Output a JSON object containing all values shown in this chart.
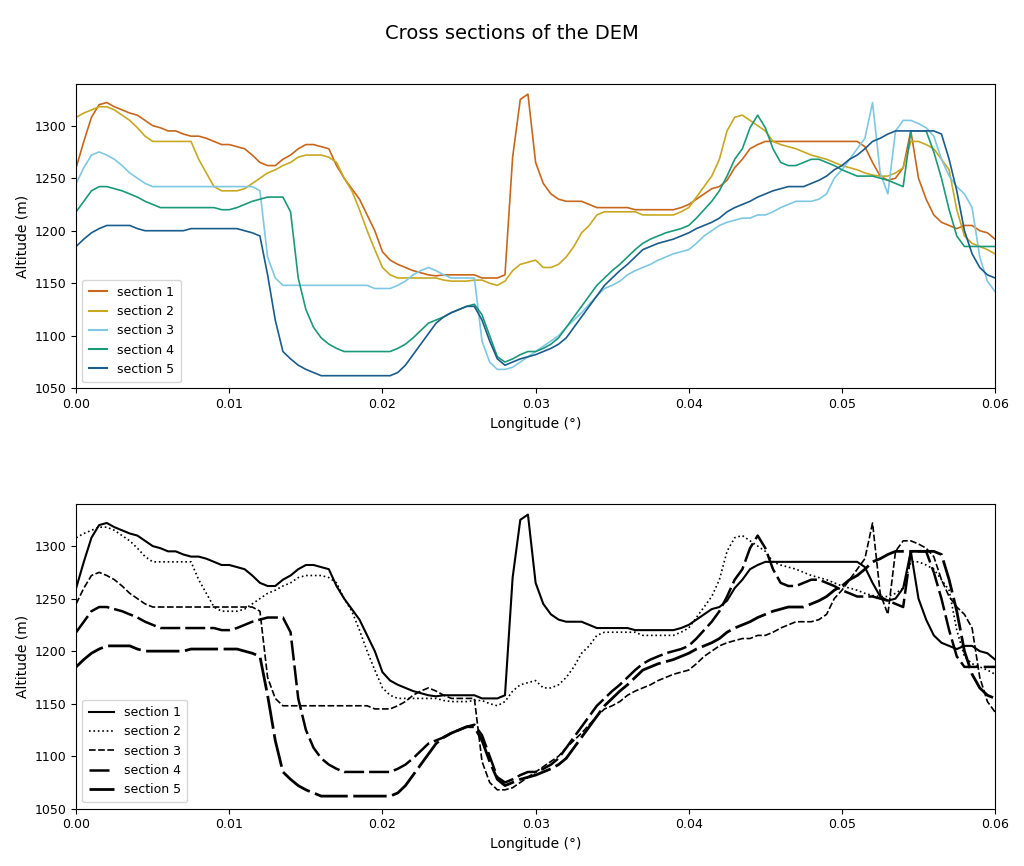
{
  "title": "Cross sections of the DEM",
  "xlabel": "Longitude (°)",
  "ylabel": "Altitude (m)",
  "xlim": [
    0.0,
    0.06
  ],
  "ylim": [
    1050,
    1340
  ],
  "yticks": [
    1050,
    1100,
    1150,
    1200,
    1250,
    1300
  ],
  "xticks": [
    0.0,
    0.01,
    0.02,
    0.03,
    0.04,
    0.05,
    0.06
  ],
  "colors": {
    "section1": "#c8671b",
    "section2": "#c8a820",
    "section3": "#7ec8e3",
    "section4": "#1a9a7a",
    "section5": "#1a5c8c"
  },
  "section1_x": [
    0.0,
    0.0005,
    0.001,
    0.0015,
    0.002,
    0.0025,
    0.003,
    0.0035,
    0.004,
    0.0045,
    0.005,
    0.0055,
    0.006,
    0.0065,
    0.007,
    0.0075,
    0.008,
    0.0085,
    0.009,
    0.0095,
    0.01,
    0.0105,
    0.011,
    0.0115,
    0.012,
    0.0125,
    0.013,
    0.0135,
    0.014,
    0.0145,
    0.015,
    0.0155,
    0.016,
    0.0165,
    0.017,
    0.0175,
    0.018,
    0.0185,
    0.019,
    0.0195,
    0.02,
    0.0205,
    0.021,
    0.0215,
    0.022,
    0.0225,
    0.023,
    0.0235,
    0.024,
    0.0245,
    0.025,
    0.0255,
    0.026,
    0.0265,
    0.027,
    0.0275,
    0.028,
    0.0285,
    0.029,
    0.0295,
    0.03,
    0.0305,
    0.031,
    0.0315,
    0.032,
    0.0325,
    0.033,
    0.0335,
    0.034,
    0.0345,
    0.035,
    0.0355,
    0.036,
    0.0365,
    0.037,
    0.0375,
    0.038,
    0.0385,
    0.039,
    0.0395,
    0.04,
    0.0405,
    0.041,
    0.0415,
    0.042,
    0.0425,
    0.043,
    0.0435,
    0.044,
    0.0445,
    0.045,
    0.0455,
    0.046,
    0.0465,
    0.047,
    0.0475,
    0.048,
    0.0485,
    0.049,
    0.0495,
    0.05,
    0.0505,
    0.051,
    0.0515,
    0.052,
    0.0525,
    0.053,
    0.0535,
    0.054,
    0.0545,
    0.055,
    0.0555,
    0.056,
    0.0565,
    0.057,
    0.0575,
    0.058,
    0.0585,
    0.059,
    0.0595,
    0.06
  ],
  "section1_y": [
    1260,
    1285,
    1308,
    1320,
    1322,
    1318,
    1315,
    1312,
    1310,
    1305,
    1300,
    1298,
    1295,
    1295,
    1292,
    1290,
    1290,
    1288,
    1285,
    1282,
    1282,
    1280,
    1278,
    1272,
    1265,
    1262,
    1262,
    1268,
    1272,
    1278,
    1282,
    1282,
    1280,
    1278,
    1262,
    1250,
    1240,
    1230,
    1215,
    1200,
    1180,
    1172,
    1168,
    1165,
    1162,
    1160,
    1158,
    1157,
    1158,
    1158,
    1158,
    1158,
    1158,
    1155,
    1155,
    1155,
    1158,
    1270,
    1325,
    1330,
    1265,
    1245,
    1235,
    1230,
    1228,
    1228,
    1228,
    1225,
    1222,
    1222,
    1222,
    1222,
    1222,
    1220,
    1220,
    1220,
    1220,
    1220,
    1220,
    1222,
    1225,
    1230,
    1235,
    1240,
    1242,
    1248,
    1260,
    1268,
    1278,
    1282,
    1285,
    1285,
    1285,
    1285,
    1285,
    1285,
    1285,
    1285,
    1285,
    1285,
    1285,
    1285,
    1285,
    1280,
    1265,
    1252,
    1248,
    1250,
    1260,
    1295,
    1250,
    1230,
    1215,
    1208,
    1205,
    1202,
    1205,
    1205,
    1200,
    1198,
    1192
  ],
  "section2_x": [
    0.0,
    0.0005,
    0.001,
    0.0015,
    0.002,
    0.0025,
    0.003,
    0.0035,
    0.004,
    0.0045,
    0.005,
    0.0055,
    0.006,
    0.0065,
    0.007,
    0.0075,
    0.008,
    0.0085,
    0.009,
    0.0095,
    0.01,
    0.0105,
    0.011,
    0.0115,
    0.012,
    0.0125,
    0.013,
    0.0135,
    0.014,
    0.0145,
    0.015,
    0.0155,
    0.016,
    0.0165,
    0.017,
    0.0175,
    0.018,
    0.0185,
    0.019,
    0.0195,
    0.02,
    0.0205,
    0.021,
    0.0215,
    0.022,
    0.0225,
    0.023,
    0.0235,
    0.024,
    0.0245,
    0.025,
    0.0255,
    0.026,
    0.0265,
    0.027,
    0.0275,
    0.028,
    0.0285,
    0.029,
    0.0295,
    0.03,
    0.0305,
    0.031,
    0.0315,
    0.032,
    0.0325,
    0.033,
    0.0335,
    0.034,
    0.0345,
    0.035,
    0.0355,
    0.036,
    0.0365,
    0.037,
    0.0375,
    0.038,
    0.0385,
    0.039,
    0.0395,
    0.04,
    0.0405,
    0.041,
    0.0415,
    0.042,
    0.0425,
    0.043,
    0.0435,
    0.044,
    0.0445,
    0.045,
    0.0455,
    0.046,
    0.0465,
    0.047,
    0.0475,
    0.048,
    0.0485,
    0.049,
    0.0495,
    0.05,
    0.0505,
    0.051,
    0.0515,
    0.052,
    0.0525,
    0.053,
    0.0535,
    0.054,
    0.0545,
    0.055,
    0.0555,
    0.056,
    0.0565,
    0.057,
    0.0575,
    0.058,
    0.0585,
    0.059,
    0.0595,
    0.06
  ],
  "section2_y": [
    1308,
    1312,
    1315,
    1318,
    1318,
    1315,
    1310,
    1305,
    1298,
    1290,
    1285,
    1285,
    1285,
    1285,
    1285,
    1285,
    1268,
    1255,
    1242,
    1238,
    1238,
    1238,
    1240,
    1245,
    1250,
    1255,
    1258,
    1262,
    1265,
    1270,
    1272,
    1272,
    1272,
    1270,
    1265,
    1250,
    1238,
    1220,
    1200,
    1182,
    1165,
    1158,
    1155,
    1155,
    1155,
    1155,
    1155,
    1155,
    1153,
    1152,
    1152,
    1152,
    1153,
    1153,
    1150,
    1148,
    1152,
    1162,
    1168,
    1170,
    1172,
    1165,
    1165,
    1168,
    1175,
    1185,
    1198,
    1205,
    1215,
    1218,
    1218,
    1218,
    1218,
    1218,
    1215,
    1215,
    1215,
    1215,
    1215,
    1218,
    1222,
    1232,
    1242,
    1252,
    1268,
    1295,
    1308,
    1310,
    1305,
    1300,
    1295,
    1285,
    1282,
    1280,
    1278,
    1275,
    1272,
    1270,
    1268,
    1265,
    1262,
    1260,
    1258,
    1255,
    1253,
    1252,
    1252,
    1255,
    1260,
    1285,
    1285,
    1282,
    1278,
    1268,
    1258,
    1220,
    1195,
    1188,
    1185,
    1182,
    1178
  ],
  "section3_x": [
    0.0,
    0.0005,
    0.001,
    0.0015,
    0.002,
    0.0025,
    0.003,
    0.0035,
    0.004,
    0.0045,
    0.005,
    0.0055,
    0.006,
    0.0065,
    0.007,
    0.0075,
    0.008,
    0.0085,
    0.009,
    0.0095,
    0.01,
    0.0105,
    0.011,
    0.0115,
    0.012,
    0.0125,
    0.013,
    0.0135,
    0.014,
    0.0145,
    0.015,
    0.0155,
    0.016,
    0.0165,
    0.017,
    0.0175,
    0.018,
    0.0185,
    0.019,
    0.0195,
    0.02,
    0.0205,
    0.021,
    0.0215,
    0.022,
    0.0225,
    0.023,
    0.0235,
    0.024,
    0.0245,
    0.025,
    0.0255,
    0.026,
    0.0265,
    0.027,
    0.0275,
    0.028,
    0.0285,
    0.029,
    0.0295,
    0.03,
    0.0305,
    0.031,
    0.0315,
    0.032,
    0.0325,
    0.033,
    0.0335,
    0.034,
    0.0345,
    0.035,
    0.0355,
    0.036,
    0.0365,
    0.037,
    0.0375,
    0.038,
    0.0385,
    0.039,
    0.0395,
    0.04,
    0.0405,
    0.041,
    0.0415,
    0.042,
    0.0425,
    0.043,
    0.0435,
    0.044,
    0.0445,
    0.045,
    0.0455,
    0.046,
    0.0465,
    0.047,
    0.0475,
    0.048,
    0.0485,
    0.049,
    0.0495,
    0.05,
    0.0505,
    0.051,
    0.0515,
    0.052,
    0.0525,
    0.053,
    0.0535,
    0.054,
    0.0545,
    0.055,
    0.0555,
    0.056,
    0.0565,
    0.057,
    0.0575,
    0.058,
    0.0585,
    0.059,
    0.0595,
    0.06
  ],
  "section3_y": [
    1245,
    1260,
    1272,
    1275,
    1272,
    1268,
    1262,
    1255,
    1250,
    1245,
    1242,
    1242,
    1242,
    1242,
    1242,
    1242,
    1242,
    1242,
    1242,
    1242,
    1242,
    1242,
    1242,
    1242,
    1238,
    1175,
    1155,
    1148,
    1148,
    1148,
    1148,
    1148,
    1148,
    1148,
    1148,
    1148,
    1148,
    1148,
    1148,
    1145,
    1145,
    1145,
    1148,
    1152,
    1158,
    1162,
    1165,
    1162,
    1158,
    1155,
    1155,
    1155,
    1155,
    1095,
    1075,
    1068,
    1068,
    1070,
    1075,
    1080,
    1085,
    1090,
    1095,
    1100,
    1108,
    1115,
    1122,
    1130,
    1138,
    1145,
    1148,
    1152,
    1158,
    1162,
    1165,
    1168,
    1172,
    1175,
    1178,
    1180,
    1182,
    1188,
    1195,
    1200,
    1205,
    1208,
    1210,
    1212,
    1212,
    1215,
    1215,
    1218,
    1222,
    1225,
    1228,
    1228,
    1228,
    1230,
    1235,
    1250,
    1258,
    1268,
    1278,
    1288,
    1322,
    1255,
    1235,
    1295,
    1305,
    1305,
    1302,
    1298,
    1290,
    1268,
    1252,
    1242,
    1235,
    1222,
    1175,
    1152,
    1142
  ],
  "section4_x": [
    0.0,
    0.0005,
    0.001,
    0.0015,
    0.002,
    0.0025,
    0.003,
    0.0035,
    0.004,
    0.0045,
    0.005,
    0.0055,
    0.006,
    0.0065,
    0.007,
    0.0075,
    0.008,
    0.0085,
    0.009,
    0.0095,
    0.01,
    0.0105,
    0.011,
    0.0115,
    0.012,
    0.0125,
    0.013,
    0.0135,
    0.014,
    0.0145,
    0.015,
    0.0155,
    0.016,
    0.0165,
    0.017,
    0.0175,
    0.018,
    0.0185,
    0.019,
    0.0195,
    0.02,
    0.0205,
    0.021,
    0.0215,
    0.022,
    0.0225,
    0.023,
    0.0235,
    0.024,
    0.0245,
    0.025,
    0.0255,
    0.026,
    0.0265,
    0.027,
    0.0275,
    0.028,
    0.0285,
    0.029,
    0.0295,
    0.03,
    0.0305,
    0.031,
    0.0315,
    0.032,
    0.0325,
    0.033,
    0.0335,
    0.034,
    0.0345,
    0.035,
    0.0355,
    0.036,
    0.0365,
    0.037,
    0.0375,
    0.038,
    0.0385,
    0.039,
    0.0395,
    0.04,
    0.0405,
    0.041,
    0.0415,
    0.042,
    0.0425,
    0.043,
    0.0435,
    0.044,
    0.0445,
    0.045,
    0.0455,
    0.046,
    0.0465,
    0.047,
    0.0475,
    0.048,
    0.0485,
    0.049,
    0.0495,
    0.05,
    0.0505,
    0.051,
    0.0515,
    0.052,
    0.0525,
    0.053,
    0.0535,
    0.054,
    0.0545,
    0.055,
    0.0555,
    0.056,
    0.0565,
    0.057,
    0.0575,
    0.058,
    0.0585,
    0.059,
    0.0595,
    0.06
  ],
  "section4_y": [
    1218,
    1228,
    1238,
    1242,
    1242,
    1240,
    1238,
    1235,
    1232,
    1228,
    1225,
    1222,
    1222,
    1222,
    1222,
    1222,
    1222,
    1222,
    1222,
    1220,
    1220,
    1222,
    1225,
    1228,
    1230,
    1232,
    1232,
    1232,
    1218,
    1155,
    1125,
    1108,
    1098,
    1092,
    1088,
    1085,
    1085,
    1085,
    1085,
    1085,
    1085,
    1085,
    1088,
    1092,
    1098,
    1105,
    1112,
    1115,
    1118,
    1122,
    1125,
    1128,
    1130,
    1120,
    1100,
    1080,
    1075,
    1078,
    1082,
    1085,
    1085,
    1088,
    1092,
    1098,
    1108,
    1118,
    1128,
    1138,
    1148,
    1155,
    1162,
    1168,
    1175,
    1182,
    1188,
    1192,
    1195,
    1198,
    1200,
    1202,
    1205,
    1212,
    1220,
    1228,
    1238,
    1252,
    1268,
    1278,
    1298,
    1310,
    1298,
    1278,
    1265,
    1262,
    1262,
    1265,
    1268,
    1268,
    1265,
    1262,
    1258,
    1255,
    1252,
    1252,
    1252,
    1250,
    1248,
    1245,
    1242,
    1295,
    1295,
    1295,
    1275,
    1250,
    1220,
    1195,
    1185,
    1185,
    1185,
    1185,
    1185
  ],
  "section5_x": [
    0.0,
    0.0005,
    0.001,
    0.0015,
    0.002,
    0.0025,
    0.003,
    0.0035,
    0.004,
    0.0045,
    0.005,
    0.0055,
    0.006,
    0.0065,
    0.007,
    0.0075,
    0.008,
    0.0085,
    0.009,
    0.0095,
    0.01,
    0.0105,
    0.011,
    0.0115,
    0.012,
    0.0125,
    0.013,
    0.0135,
    0.014,
    0.0145,
    0.015,
    0.0155,
    0.016,
    0.0165,
    0.017,
    0.0175,
    0.018,
    0.0185,
    0.019,
    0.0195,
    0.02,
    0.0205,
    0.021,
    0.0215,
    0.022,
    0.0225,
    0.023,
    0.0235,
    0.024,
    0.0245,
    0.025,
    0.0255,
    0.026,
    0.0265,
    0.027,
    0.0275,
    0.028,
    0.0285,
    0.029,
    0.0295,
    0.03,
    0.0305,
    0.031,
    0.0315,
    0.032,
    0.0325,
    0.033,
    0.0335,
    0.034,
    0.0345,
    0.035,
    0.0355,
    0.036,
    0.0365,
    0.037,
    0.0375,
    0.038,
    0.0385,
    0.039,
    0.0395,
    0.04,
    0.0405,
    0.041,
    0.0415,
    0.042,
    0.0425,
    0.043,
    0.0435,
    0.044,
    0.0445,
    0.045,
    0.0455,
    0.046,
    0.0465,
    0.047,
    0.0475,
    0.048,
    0.0485,
    0.049,
    0.0495,
    0.05,
    0.0505,
    0.051,
    0.0515,
    0.052,
    0.0525,
    0.053,
    0.0535,
    0.054,
    0.0545,
    0.055,
    0.0555,
    0.056,
    0.0565,
    0.057,
    0.0575,
    0.058,
    0.0585,
    0.059,
    0.0595,
    0.06
  ],
  "section5_y": [
    1185,
    1192,
    1198,
    1202,
    1205,
    1205,
    1205,
    1205,
    1202,
    1200,
    1200,
    1200,
    1200,
    1200,
    1200,
    1202,
    1202,
    1202,
    1202,
    1202,
    1202,
    1202,
    1200,
    1198,
    1195,
    1158,
    1115,
    1085,
    1078,
    1072,
    1068,
    1065,
    1062,
    1062,
    1062,
    1062,
    1062,
    1062,
    1062,
    1062,
    1062,
    1062,
    1065,
    1072,
    1082,
    1092,
    1102,
    1112,
    1118,
    1122,
    1125,
    1128,
    1128,
    1115,
    1095,
    1078,
    1072,
    1075,
    1078,
    1080,
    1082,
    1085,
    1088,
    1092,
    1098,
    1108,
    1118,
    1128,
    1138,
    1148,
    1155,
    1162,
    1168,
    1175,
    1182,
    1185,
    1188,
    1190,
    1192,
    1195,
    1198,
    1202,
    1205,
    1208,
    1212,
    1218,
    1222,
    1225,
    1228,
    1232,
    1235,
    1238,
    1240,
    1242,
    1242,
    1242,
    1245,
    1248,
    1252,
    1258,
    1262,
    1268,
    1272,
    1278,
    1285,
    1288,
    1292,
    1295,
    1295,
    1295,
    1295,
    1295,
    1295,
    1292,
    1268,
    1238,
    1200,
    1178,
    1165,
    1158,
    1155
  ]
}
